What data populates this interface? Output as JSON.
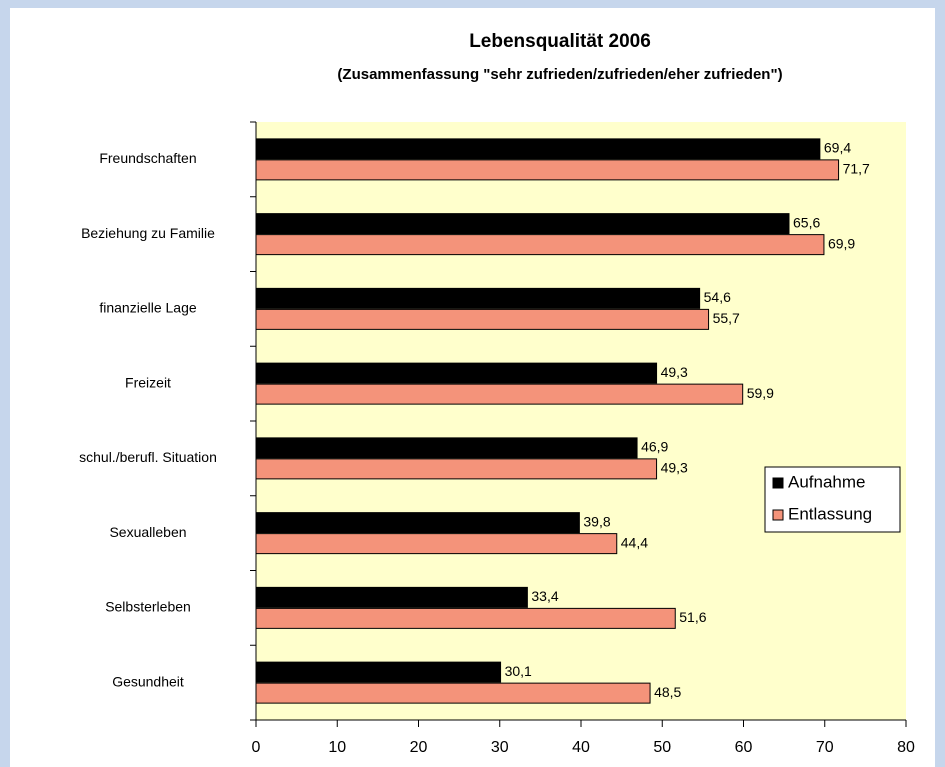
{
  "chart_data": {
    "type": "barh",
    "title": "Lebensqualität 2006",
    "subtitle": "(Zusammenfassung \"sehr zufrieden/zufrieden/eher zufrieden\")",
    "categories": [
      "Freundschaften",
      "Beziehung zu Familie",
      "finanzielle Lage",
      "Freizeit",
      "schul./berufl. Situation",
      "Sexualleben",
      "Selbsterleben",
      "Gesundheit"
    ],
    "series": [
      {
        "name": "Aufnahme",
        "color": "#000000",
        "values": [
          69.4,
          65.6,
          54.6,
          49.3,
          46.9,
          39.8,
          33.4,
          30.1
        ],
        "value_labels": [
          "69,4",
          "65,6",
          "54,6",
          "49,3",
          "46,9",
          "39,8",
          "33,4",
          "30,1"
        ]
      },
      {
        "name": "Entlassung",
        "color": "#f4937a",
        "values": [
          71.7,
          69.9,
          55.7,
          59.9,
          49.3,
          44.4,
          51.6,
          48.5
        ],
        "value_labels": [
          "71,7",
          "69,9",
          "55,7",
          "59,9",
          "49,3",
          "44,4",
          "51,6",
          "48,5"
        ]
      }
    ],
    "xlim": [
      0,
      80
    ],
    "xticks": [
      0,
      10,
      20,
      30,
      40,
      50,
      60,
      70,
      80
    ],
    "grid": false,
    "legend_position": "right",
    "plot_background": "#ffffcc"
  }
}
